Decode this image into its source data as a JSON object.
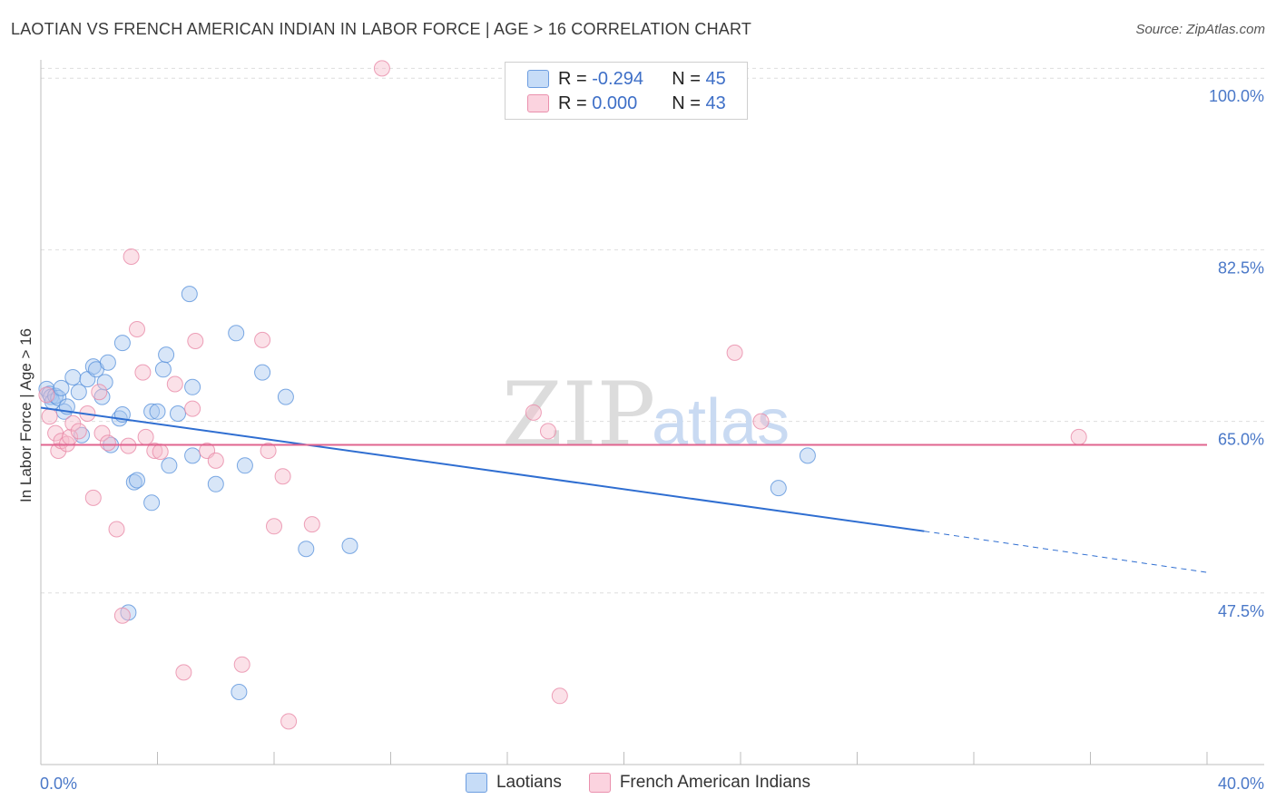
{
  "title": "LAOTIAN VS FRENCH AMERICAN INDIAN IN LABOR FORCE | AGE > 16 CORRELATION CHART",
  "source": "Source: ZipAtlas.com",
  "watermark": {
    "zip": "ZIP",
    "atlas": "atlas"
  },
  "legend_top": {
    "rows": [
      {
        "r_label": "R =",
        "r_value": "-0.294",
        "n_label": "N =",
        "n_value": "45",
        "color": "#a9c8f0"
      },
      {
        "r_label": "R =",
        "r_value": "0.000",
        "n_label": "N =",
        "n_value": "43",
        "color": "#f6bccd"
      }
    ]
  },
  "legend_bottom": {
    "items": [
      {
        "label": "Laotians",
        "color": "#a9c8f0"
      },
      {
        "label": "French American Indians",
        "color": "#f6bccd"
      }
    ]
  },
  "chart_data": {
    "type": "scatter",
    "title": "LAOTIAN VS FRENCH AMERICAN INDIAN IN LABOR FORCE | AGE > 16 CORRELATION CHART",
    "xlabel": "",
    "ylabel": "In Labor Force | Age > 16",
    "xlim": [
      0,
      40
    ],
    "ylim": [
      30,
      101.5
    ],
    "x_tick_labels": {
      "min": "0.0%",
      "max": "40.0%"
    },
    "y_ticks": [
      {
        "value": 47.5,
        "label": "47.5%"
      },
      {
        "value": 65.0,
        "label": "65.0%"
      },
      {
        "value": 82.5,
        "label": "82.5%"
      },
      {
        "value": 100.0,
        "label": "100.0%"
      }
    ],
    "grid": true,
    "series": [
      {
        "name": "Laotians",
        "color": "#5b93dc",
        "fill": "#a9c8f0",
        "points": [
          [
            0.2,
            68.3
          ],
          [
            0.3,
            67.8
          ],
          [
            0.35,
            67.5
          ],
          [
            0.4,
            67.0
          ],
          [
            0.5,
            67.6
          ],
          [
            0.6,
            67.4
          ],
          [
            0.7,
            68.4
          ],
          [
            0.8,
            66.0
          ],
          [
            0.9,
            66.5
          ],
          [
            1.1,
            69.5
          ],
          [
            1.3,
            68.0
          ],
          [
            1.4,
            63.6
          ],
          [
            1.6,
            69.3
          ],
          [
            1.8,
            70.6
          ],
          [
            1.9,
            70.3
          ],
          [
            2.1,
            67.5
          ],
          [
            2.2,
            69.0
          ],
          [
            2.3,
            71.0
          ],
          [
            2.4,
            62.6
          ],
          [
            2.7,
            65.3
          ],
          [
            2.8,
            65.7
          ],
          [
            2.8,
            73.0
          ],
          [
            3.2,
            58.8
          ],
          [
            3.3,
            59.0
          ],
          [
            3.8,
            56.7
          ],
          [
            3.8,
            66.0
          ],
          [
            4.0,
            66.0
          ],
          [
            4.2,
            70.3
          ],
          [
            4.3,
            71.8
          ],
          [
            4.4,
            60.5
          ],
          [
            4.7,
            65.8
          ],
          [
            5.1,
            78.0
          ],
          [
            5.2,
            61.5
          ],
          [
            5.2,
            68.5
          ],
          [
            6.0,
            58.6
          ],
          [
            6.7,
            74.0
          ],
          [
            6.8,
            37.4
          ],
          [
            7.0,
            60.5
          ],
          [
            7.6,
            70.0
          ],
          [
            8.4,
            67.5
          ],
          [
            9.1,
            52.0
          ],
          [
            10.6,
            52.3
          ],
          [
            25.3,
            58.2
          ],
          [
            26.3,
            61.5
          ],
          [
            3.0,
            45.5
          ]
        ]
      },
      {
        "name": "French American Indians",
        "color": "#e98aa7",
        "fill": "#f6bccd",
        "points": [
          [
            0.2,
            67.7
          ],
          [
            0.3,
            65.5
          ],
          [
            0.5,
            63.8
          ],
          [
            0.6,
            62.0
          ],
          [
            0.7,
            63.0
          ],
          [
            0.9,
            62.7
          ],
          [
            1.0,
            63.4
          ],
          [
            1.1,
            64.8
          ],
          [
            1.3,
            64.0
          ],
          [
            1.6,
            65.8
          ],
          [
            1.8,
            57.2
          ],
          [
            2.0,
            68.0
          ],
          [
            2.1,
            63.8
          ],
          [
            2.3,
            62.8
          ],
          [
            2.6,
            54.0
          ],
          [
            2.8,
            45.2
          ],
          [
            3.0,
            62.5
          ],
          [
            3.1,
            81.8
          ],
          [
            3.3,
            74.4
          ],
          [
            3.5,
            70.0
          ],
          [
            3.6,
            63.4
          ],
          [
            3.9,
            62.0
          ],
          [
            4.1,
            61.9
          ],
          [
            4.6,
            68.8
          ],
          [
            4.9,
            39.4
          ],
          [
            5.2,
            66.3
          ],
          [
            5.3,
            73.2
          ],
          [
            5.7,
            62.0
          ],
          [
            6.0,
            61.0
          ],
          [
            6.9,
            40.2
          ],
          [
            7.6,
            73.3
          ],
          [
            7.8,
            62.0
          ],
          [
            8.0,
            54.3
          ],
          [
            8.3,
            59.4
          ],
          [
            8.5,
            34.4
          ],
          [
            9.3,
            54.5
          ],
          [
            11.7,
            101.0
          ],
          [
            16.9,
            65.9
          ],
          [
            17.4,
            64.0
          ],
          [
            17.8,
            37.0
          ],
          [
            23.8,
            72.0
          ],
          [
            24.7,
            65.0
          ],
          [
            35.6,
            63.4
          ]
        ]
      }
    ],
    "trend_lines": [
      {
        "series": "Laotians",
        "x0": 0,
        "y0": 66.4,
        "x1": 30.3,
        "y1": 53.8,
        "dashed_to_x": 40,
        "dashed_to_y": 49.6,
        "color": "#2f6ed1"
      },
      {
        "series": "French American Indians",
        "x0": 0,
        "y0": 62.6,
        "x1": 40,
        "y1": 62.6,
        "color": "#e0648f"
      }
    ]
  }
}
